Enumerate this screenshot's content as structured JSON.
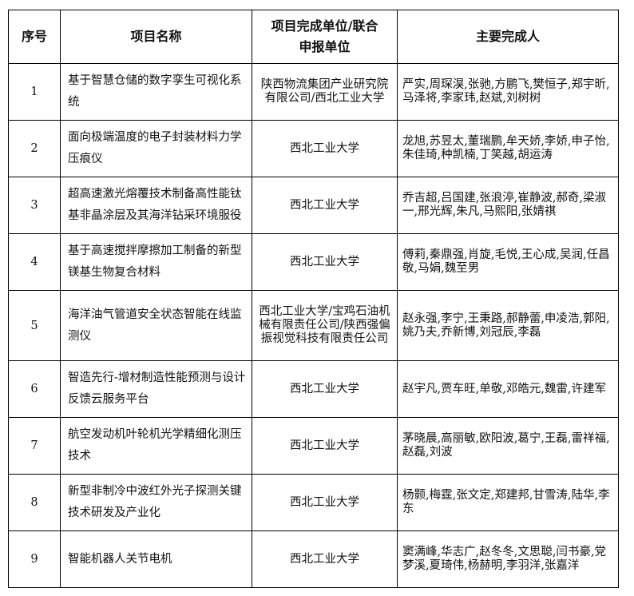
{
  "headers": [
    "序号",
    "项目名称",
    "项目完成单位/联合申报单位",
    "主要完成人"
  ],
  "rows": [
    {
      "no": "1",
      "name": "基于智慧仓储的数字孪生可视化系统",
      "unit": "陕西物流集团产业研究院有限公司/西北工业大学",
      "people": "严实,周琛淏,张驰,方鹏飞,樊恒子,郑宇昕,马泽将,李家玮,赵斌,刘树树"
    },
    {
      "no": "2",
      "name": "面向极端温度的电子封装材料力学压痕仪",
      "unit": "西北工业大学",
      "people": "龙旭,苏昱太,董瑞鹏,牟天娇,李娇,申子怡,朱佳琦,种凯楠,丁笑越,胡运涛"
    },
    {
      "no": "3",
      "name": "超高速激光熔覆技术制备高性能钛基非晶涂层及其海洋钻采环境服役",
      "unit": "西北工业大学",
      "people": "乔吉超,吕国建,张浪渟,崔静波,郝奇,梁淑一,邢光辉,朱凡,马熙阳,张婧祺"
    },
    {
      "no": "4",
      "name": "基于高速搅拌摩擦加工制备的新型镁基生物复合材料",
      "unit": "西北工业大学",
      "people": "傅莉,秦鼎强,肖旋,毛悦,王心成,吴润,任昌敬,马娟,魏至男"
    },
    {
      "no": "5",
      "name": "海洋油气管道安全状态智能在线监测仪",
      "unit": "西北工业大学/宝鸡石油机械有限责任公司/陕西强偏振视觉科技有限责任公司",
      "people": "赵永强,李宁,王秉路,郝静蕾,申凌浩,郭阳,姚乃夫,乔新博,刘冠辰,李磊"
    },
    {
      "no": "6",
      "name": "智造先行-增材制造性能预测与设计反馈云服务平台",
      "unit": "西北工业大学",
      "people": "赵宇凡,贾车旺,单敬,邓皓元,魏雷,许建军"
    },
    {
      "no": "7",
      "name": "航空发动机叶轮机光学精细化测压技术",
      "unit": "西北工业大学",
      "people": "茅晓晨,高丽敏,欧阳波,葛宁,王磊,雷祥福,赵磊,刘波"
    },
    {
      "no": "8",
      "name": "新型非制冷中波红外光子探测关键技术研发及产业化",
      "unit": "西北工业大学",
      "people": "杨颢,梅霆,张文定,郑建邦,甘雪涛,陆华,李东"
    },
    {
      "no": "9",
      "name": "智能机器人关节电机",
      "unit": "西北工业大学",
      "people": "窦满峰,华志广,赵冬冬,文思聪,闫书豪,党梦溪,夏琦伟,杨赫明,李羽洋,张嘉洋"
    }
  ]
}
